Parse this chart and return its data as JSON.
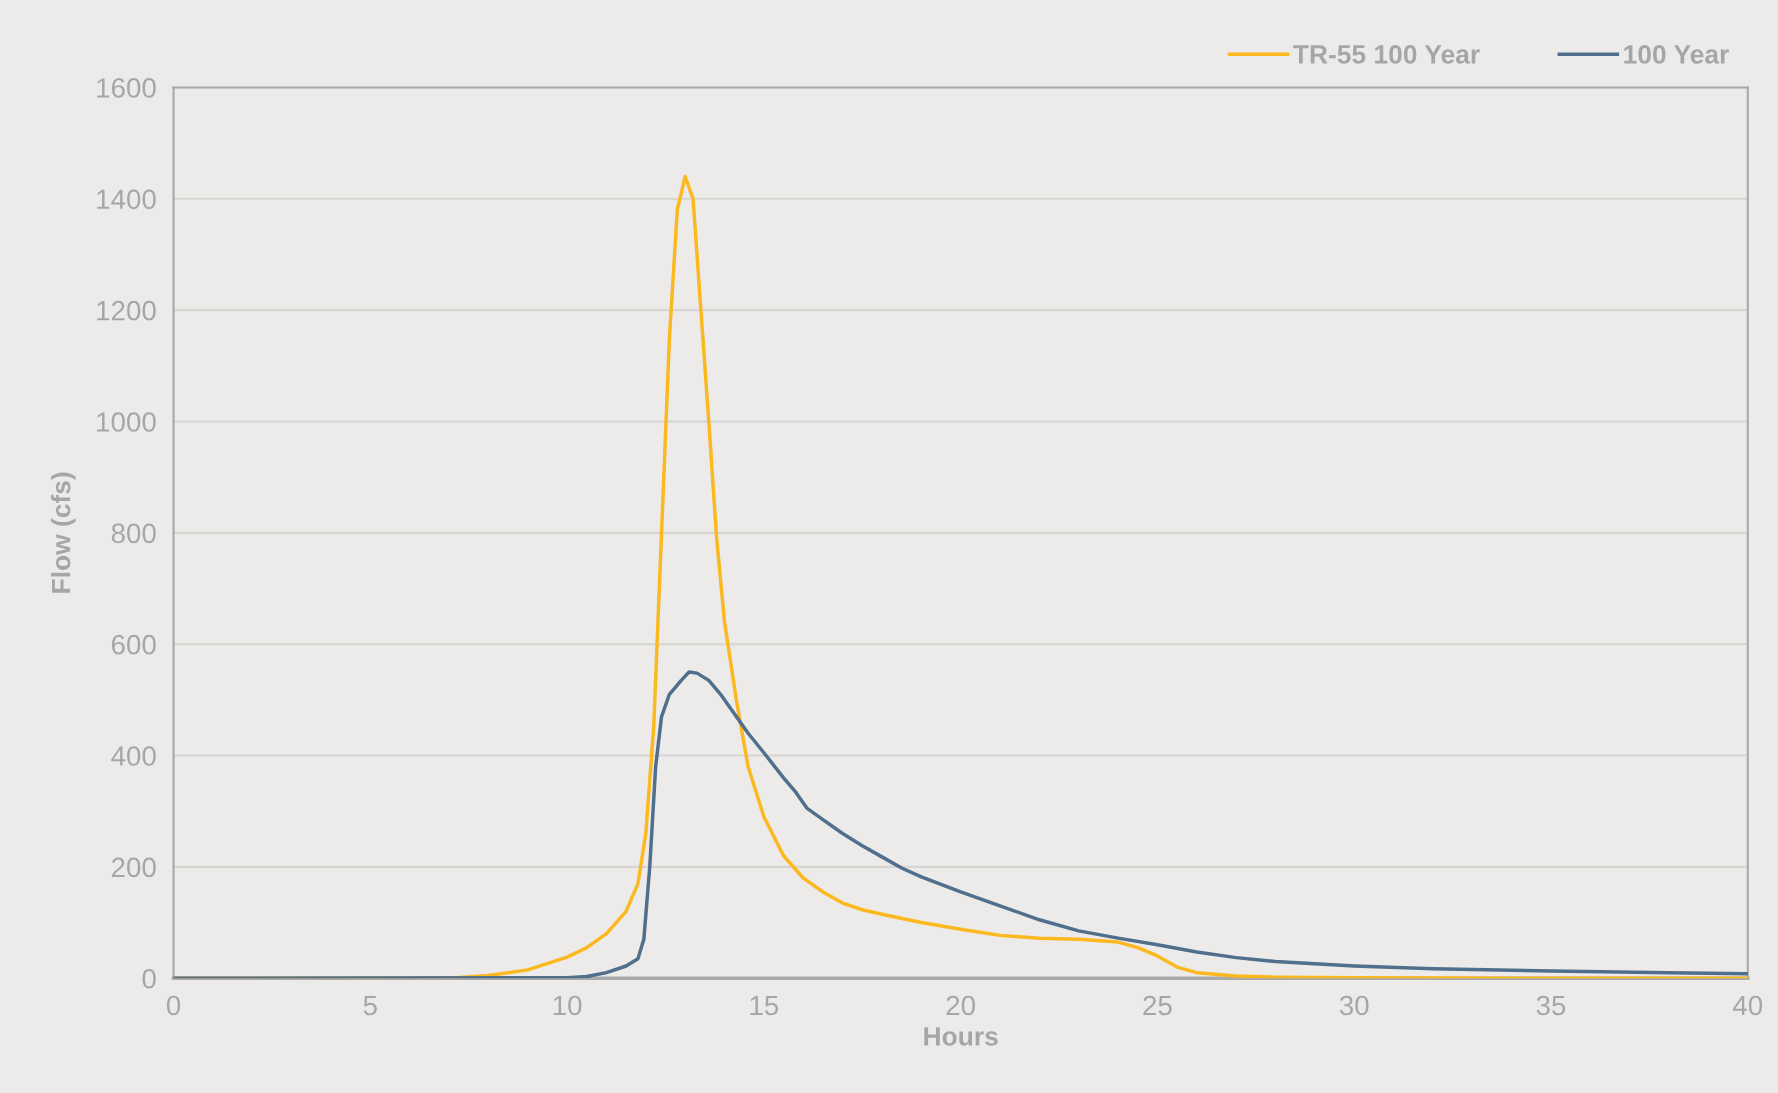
{
  "chart_data": {
    "type": "line",
    "xlabel": "Hours",
    "ylabel": "Flow (cfs)",
    "xlim": [
      0,
      40
    ],
    "xticks": [
      0,
      5,
      10,
      15,
      20,
      25,
      30,
      35,
      40
    ],
    "ylim": [
      0,
      1600
    ],
    "yticks": [
      0,
      200,
      400,
      600,
      800,
      1000,
      1200,
      1400,
      1600
    ],
    "grid": "y",
    "legend": "top right",
    "marker": "none",
    "line_style": "solid",
    "series": [
      {
        "name": "TR-55 100 Year",
        "color": "#fbb81f",
        "x": [
          0,
          7,
          8,
          9,
          10,
          10.5,
          11,
          11.5,
          11.8,
          12,
          12.2,
          12.4,
          12.6,
          12.8,
          13,
          13.2,
          13.4,
          13.6,
          13.8,
          14,
          14.3,
          14.6,
          15,
          15.5,
          16,
          16.5,
          17,
          17.5,
          18,
          19,
          20,
          21,
          22,
          23,
          24,
          24.5,
          25,
          25.5,
          26,
          27,
          28,
          30,
          35,
          40
        ],
        "values": [
          0,
          0,
          5,
          15,
          38,
          55,
          80,
          120,
          170,
          260,
          450,
          800,
          1150,
          1380,
          1440,
          1400,
          1200,
          1000,
          790,
          640,
          500,
          380,
          290,
          220,
          180,
          155,
          135,
          123,
          115,
          100,
          88,
          77,
          72,
          70,
          65,
          55,
          40,
          20,
          10,
          4,
          2,
          1,
          0,
          0
        ]
      },
      {
        "name": "100 Year",
        "color": "#4f6f8c",
        "x": [
          0,
          10,
          10.5,
          11,
          11.5,
          11.8,
          11.95,
          12.1,
          12.25,
          12.4,
          12.6,
          12.9,
          13.1,
          13.3,
          13.6,
          13.9,
          14.2,
          14.6,
          15,
          15.5,
          15.8,
          16.1,
          16.5,
          17,
          17.5,
          18,
          18.5,
          19,
          20,
          21,
          22,
          23,
          24,
          25,
          26,
          27,
          28,
          30,
          32,
          35,
          38,
          40
        ],
        "values": [
          0,
          1,
          3,
          10,
          22,
          35,
          70,
          200,
          380,
          470,
          510,
          535,
          550,
          548,
          535,
          510,
          480,
          440,
          405,
          360,
          335,
          305,
          285,
          260,
          238,
          218,
          198,
          182,
          155,
          130,
          105,
          85,
          72,
          60,
          47,
          37,
          30,
          22,
          17,
          13,
          10,
          8
        ]
      }
    ]
  }
}
